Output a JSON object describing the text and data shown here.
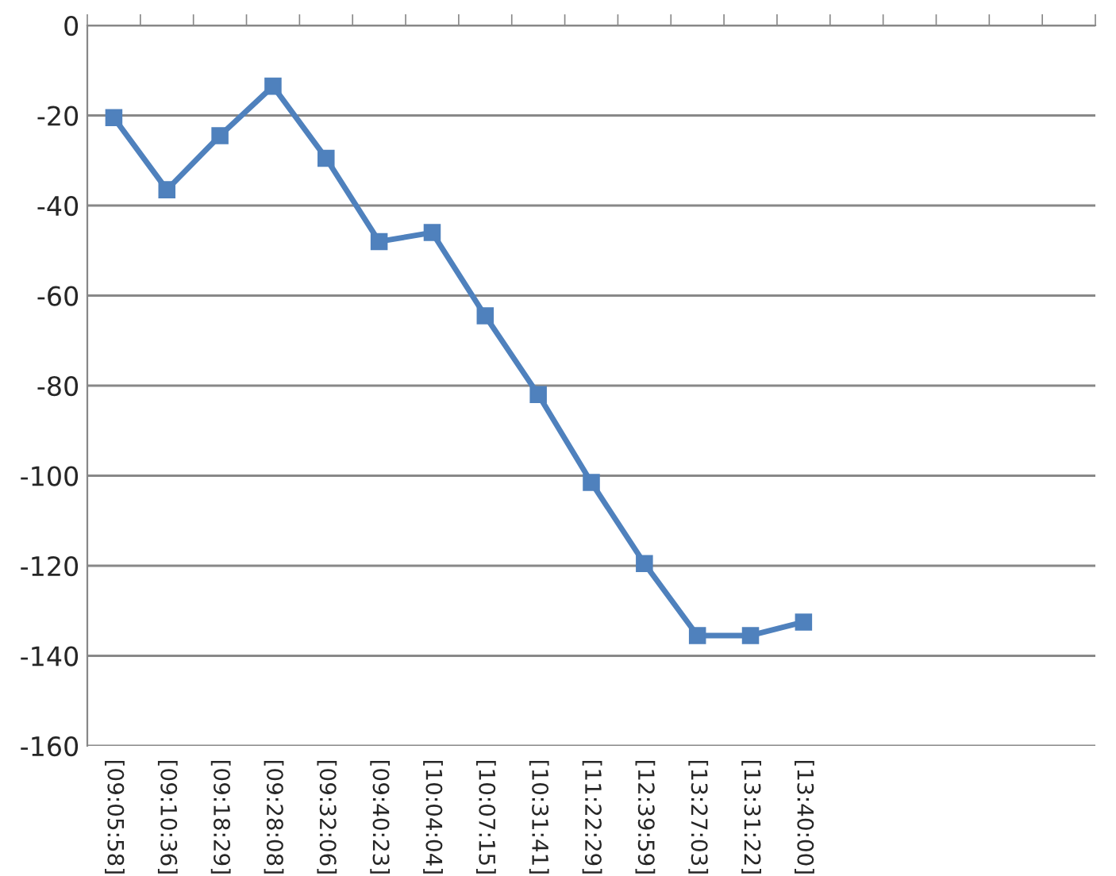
{
  "chart_data": {
    "type": "line",
    "categories": [
      "[09:05:58]",
      "[09:10:36]",
      "[09:18:29]",
      "[09:28:08]",
      "[09:32:06]",
      "[09:40:23]",
      "[10:04:04]",
      "[10:07:15]",
      "[10:31:41]",
      "[11:22:29]",
      "[12:39:59]",
      "[13:27:03]",
      "[13:31:22]",
      "[13:40:00]",
      null,
      null,
      null,
      null,
      null
    ],
    "series": [
      {
        "color": "#4f81bd",
        "values": [
          -20.5,
          -36.5,
          -24.5,
          -13.5,
          -29.5,
          -48,
          -46,
          -64.5,
          -82,
          -101.5,
          -119.5,
          -135.5,
          -135.5,
          -132.5,
          null,
          null,
          null,
          null,
          null
        ]
      }
    ],
    "ylim": [
      -160,
      0
    ],
    "yticks": [
      -160,
      -140,
      -120,
      -100,
      -80,
      -60,
      -40,
      -20,
      0
    ],
    "grid": "y",
    "marker": "square",
    "line_style": "solid",
    "legend": false
  }
}
